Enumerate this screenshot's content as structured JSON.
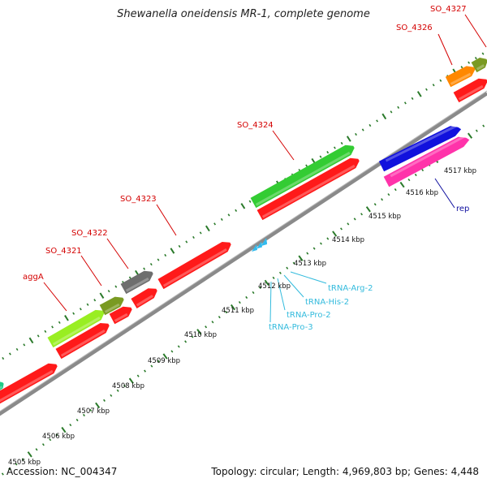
{
  "title": "Shewanella oneidensis MR-1, complete genome",
  "footer": {
    "accession": "Accession: NC_004347",
    "summary": "Topology: circular; Length: 4,969,803 bp; Genes: 4,448"
  },
  "scale_labels": [
    "4505 kbp",
    "4506 kbp",
    "4507 kbp",
    "4508 kbp",
    "4509 kbp",
    "4510 kbp",
    "4511 kbp",
    "4512 kbp",
    "4513 kbp",
    "4514 kbp",
    "4515 kbp",
    "4516 kbp",
    "4517 kbp"
  ],
  "gene_labels": [
    {
      "text": "SO_4327",
      "color": "#d40000"
    },
    {
      "text": "SO_4326",
      "color": "#d40000"
    },
    {
      "text": "SO_4324",
      "color": "#d40000"
    },
    {
      "text": "SO_4323",
      "color": "#d40000"
    },
    {
      "text": "SO_4322",
      "color": "#d40000"
    },
    {
      "text": "SO_4321",
      "color": "#d40000"
    },
    {
      "text": "aggA",
      "color": "#d40000"
    },
    {
      "text": "rep",
      "color": "#1010a0"
    },
    {
      "text": "tRNA-Arg-2",
      "color": "#33bbdd"
    },
    {
      "text": "tRNA-His-2",
      "color": "#33bbdd"
    },
    {
      "text": "tRNA-Pro-2",
      "color": "#33bbdd"
    },
    {
      "text": "tRNA-Pro-3",
      "color": "#33bbdd"
    }
  ],
  "colors": {
    "backbone": "#8a8a8a",
    "cds": "#ff1a1a",
    "green": "#33cc33",
    "lime": "#99ee22",
    "olive": "#7a9a22",
    "gray": "#6e6e6e",
    "orange": "#ff8800",
    "blue": "#1111dd",
    "pink": "#ff33aa",
    "trna": "#33bbee",
    "tick": "#2a7a2a",
    "leader_red": "#d40000",
    "leader_blue": "#1010a0",
    "leader_cyan": "#33bbdd"
  }
}
